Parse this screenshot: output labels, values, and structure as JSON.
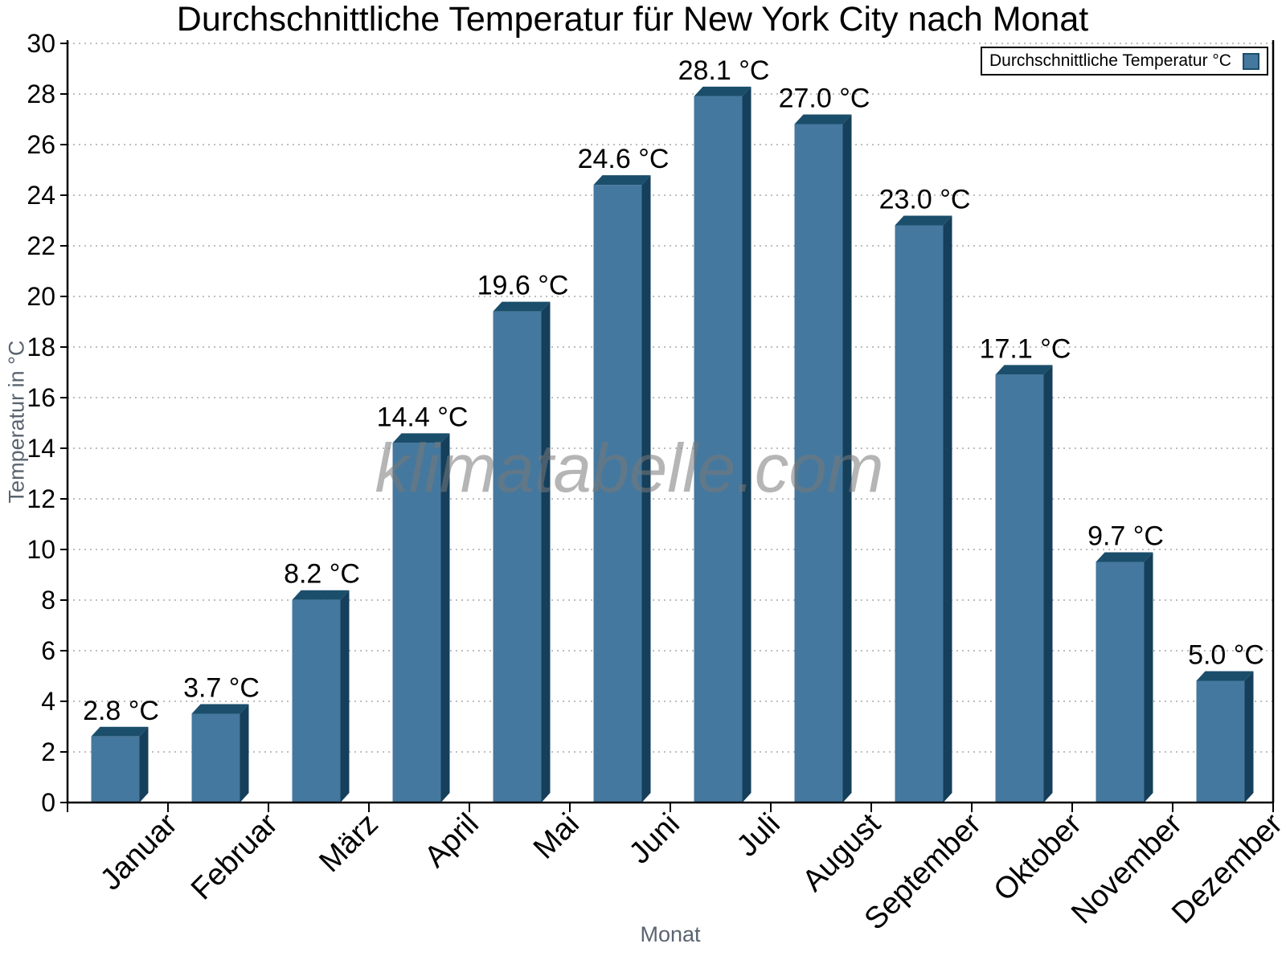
{
  "watermark": "klimatabelle.com",
  "chart_data": {
    "type": "bar",
    "title": "Durchschnittliche Temperatur für New York City nach Monat",
    "xlabel": "Monat",
    "ylabel": "Temperatur in °C",
    "legend": "Durchschnittliche Temperatur °C",
    "legend_position": "top-right",
    "grid": "horizontal-dotted",
    "ylim": [
      0,
      30
    ],
    "ytick_step": 2,
    "categories": [
      "Januar",
      "Februar",
      "März",
      "April",
      "Mai",
      "Juni",
      "Juli",
      "August",
      "September",
      "Oktober",
      "November",
      "Dezember"
    ],
    "values": [
      2.8,
      3.7,
      8.2,
      14.4,
      19.6,
      24.6,
      28.1,
      27.0,
      23.0,
      17.1,
      9.7,
      5.0
    ],
    "value_labels": [
      "2.8 °C",
      "3.7 °C",
      "8.2 °C",
      "14.4 °C",
      "19.6 °C",
      "24.6 °C",
      "28.1 °C",
      "27.0 °C",
      "23.0 °C",
      "17.1 °C",
      "9.7 °C",
      "5.0 °C"
    ],
    "colors": {
      "bar_face": "#45789E",
      "bar_top": "#1B4E6B",
      "bar_side": "#153F5B",
      "grid": "#a9a9a9",
      "axis": "#000000",
      "tick_label": "#000000",
      "value_label": "#000000",
      "axis_title": "#5a6470",
      "legend_border": "#000000",
      "watermark": "#787878"
    }
  }
}
